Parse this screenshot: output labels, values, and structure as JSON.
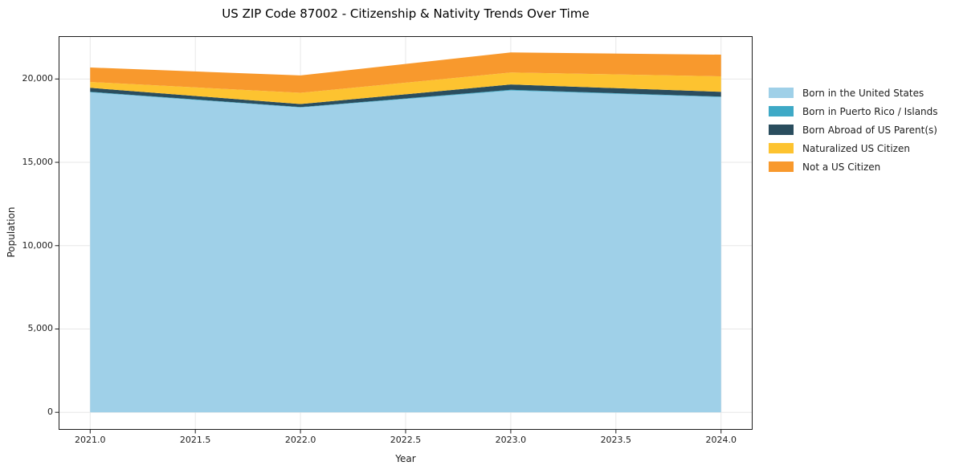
{
  "chart_data": {
    "type": "area",
    "stacked": true,
    "title": "US ZIP Code 87002 - Citizenship & Nativity Trends Over Time",
    "xlabel": "Year",
    "ylabel": "Population",
    "x": [
      2021,
      2022,
      2023,
      2024
    ],
    "series": [
      {
        "name": "Born in the United States",
        "color": "#9fd0e8",
        "values": [
          19200,
          18290,
          19310,
          18910
        ]
      },
      {
        "name": "Born in Puerto Rico / Islands",
        "color": "#3ea9c6",
        "values": [
          30,
          25,
          40,
          30
        ]
      },
      {
        "name": "Born Abroad of US Parent(s)",
        "color": "#2a4d5e",
        "values": [
          240,
          180,
          320,
          290
        ]
      },
      {
        "name": "Naturalized US Citizen",
        "color": "#fdc330",
        "values": [
          350,
          675,
          720,
          930
        ]
      },
      {
        "name": "Not a US Citizen",
        "color": "#f8992d",
        "values": [
          870,
          1045,
          1205,
          1300
        ]
      }
    ],
    "totals": [
      20690,
      20215,
      21595,
      21460
    ],
    "xlim": [
      2020.85,
      2024.15
    ],
    "ylim": [
      -1050,
      22570
    ],
    "xticks": [
      2021.0,
      2021.5,
      2022.0,
      2022.5,
      2023.0,
      2023.5,
      2024.0
    ],
    "xtick_labels": [
      "2021.0",
      "2021.5",
      "2022.0",
      "2022.5",
      "2023.0",
      "2023.5",
      "2024.0"
    ],
    "yticks": [
      0,
      5000,
      10000,
      15000,
      20000
    ],
    "ytick_labels": [
      "0",
      "5,000",
      "10,000",
      "15,000",
      "20,000"
    ],
    "grid": true,
    "legend_position": "right-outside"
  },
  "colors": {
    "background": "#ffffff",
    "grid": "#e7e7e7",
    "spine": "#1c1c1c",
    "tick": "#1c1c1c",
    "text": "#1c1c1c"
  }
}
